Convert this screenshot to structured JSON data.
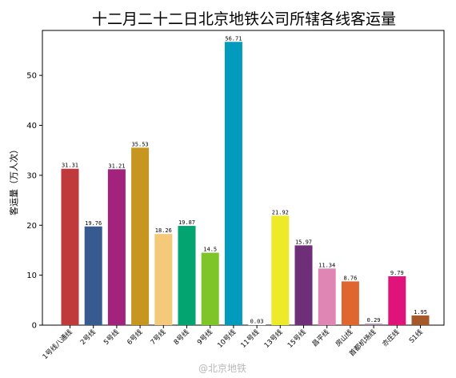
{
  "chart_data": {
    "type": "bar",
    "title": "十二月二十二日北京地铁公司所辖各线客运量",
    "ylabel": "客运量（万人次）",
    "xlabel": "",
    "ylim": [
      0,
      59
    ],
    "yticks": [
      0,
      10,
      20,
      30,
      40,
      50
    ],
    "grid": false,
    "categories": [
      "1号线八通线",
      "2号线",
      "5号线",
      "6号线",
      "7号线",
      "8号线",
      "9号线",
      "10号线",
      "11号线",
      "13号线",
      "15号线",
      "昌平线",
      "房山线",
      "首都机场线",
      "亦庄线",
      "S1线"
    ],
    "values": [
      31.31,
      19.76,
      31.21,
      35.53,
      18.26,
      19.87,
      14.5,
      56.71,
      0.03,
      21.92,
      15.97,
      11.34,
      8.76,
      0.29,
      9.79,
      1.95
    ],
    "value_labels": [
      "31.31",
      "19.76",
      "31.21",
      "35.53",
      "18.26",
      "19.87",
      "14.5",
      "56.71",
      "0.03",
      "21.92",
      "15.97",
      "11.34",
      "8.76",
      "0.29",
      "9.79",
      "1.95"
    ],
    "colors": [
      "#c0393b",
      "#375b91",
      "#a3237c",
      "#c79620",
      "#f4ca7a",
      "#04a470",
      "#7ec52a",
      "#039bbd",
      "#e8e8e8",
      "#ecea29",
      "#6f2f78",
      "#e086b4",
      "#e0662f",
      "#a28aa4",
      "#e0137b",
      "#a5582a"
    ]
  },
  "watermark": "@北京地铁"
}
